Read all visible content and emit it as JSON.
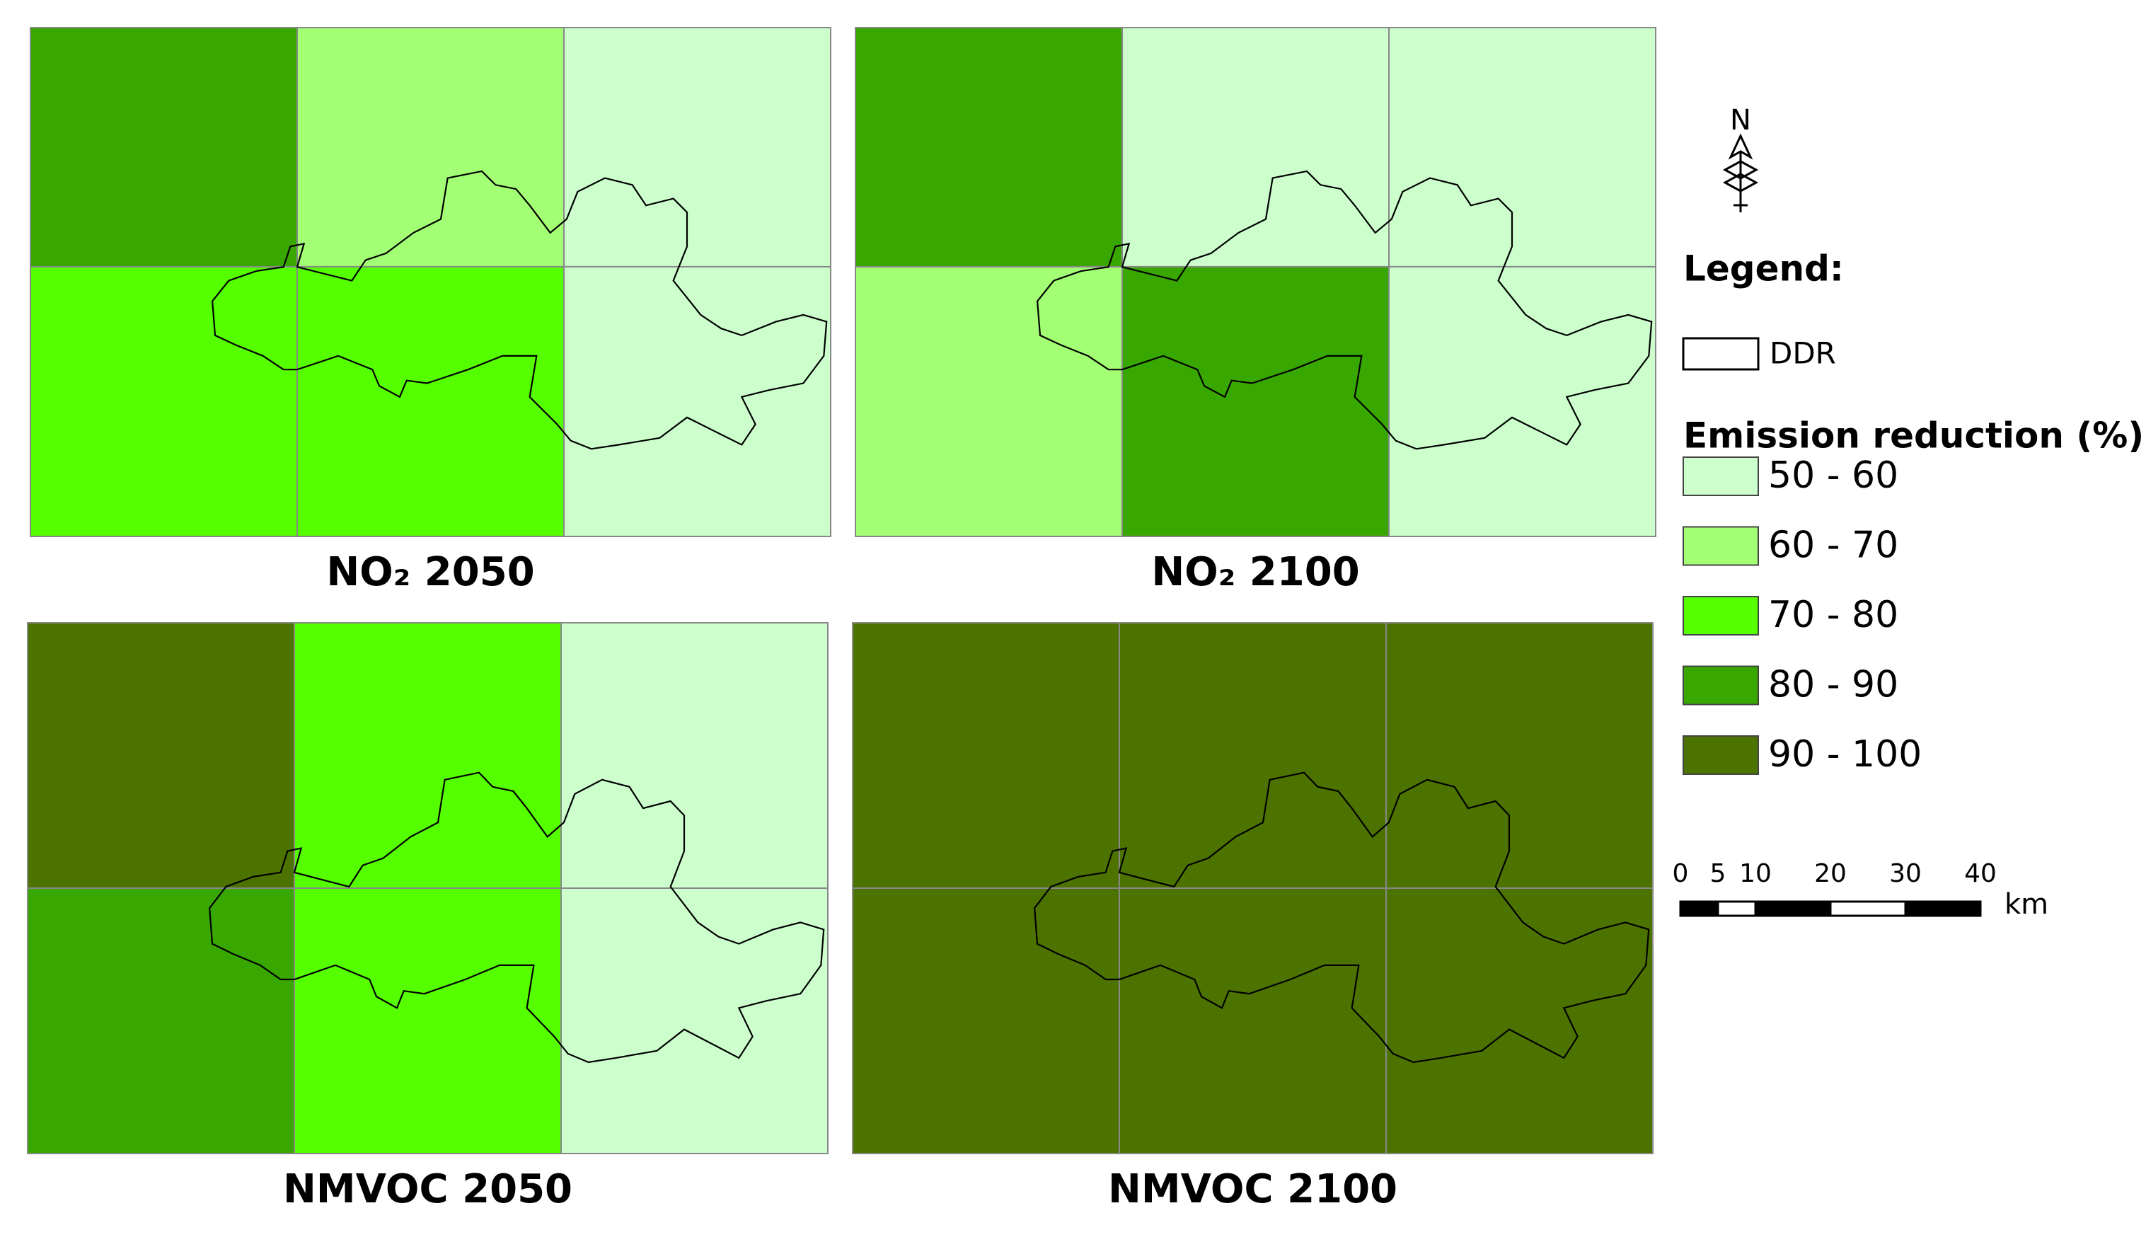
{
  "panels": [
    {
      "title": "NO₂ 2050",
      "cells": [
        [
          3,
          1,
          0
        ],
        [
          2,
          2,
          0
        ]
      ]
    },
    {
      "title": "NO₂ 2100",
      "cells": [
        [
          3,
          0,
          0
        ],
        [
          1,
          3,
          0
        ]
      ]
    },
    {
      "title": "NMVOC 2050",
      "cells": [
        [
          4,
          2,
          0
        ],
        [
          3,
          2,
          0
        ]
      ]
    },
    {
      "title": "NMVOC 2100",
      "cells": [
        [
          4,
          4,
          4
        ],
        [
          4,
          4,
          4
        ]
      ]
    }
  ],
  "north": "N",
  "legend": {
    "title": "Legend:",
    "boundary": "DDR",
    "heading": "Emission reduction (%)",
    "classes": [
      {
        "label": "50 - 60",
        "color": "#ccffcc"
      },
      {
        "label": "60 - 70",
        "color": "#a3ff73"
      },
      {
        "label": "70 - 80",
        "color": "#55ff00"
      },
      {
        "label": "80 - 90",
        "color": "#38a800"
      },
      {
        "label": "90 - 100",
        "color": "#4c7300"
      }
    ]
  },
  "scale_bar": {
    "ticks": [
      0,
      5,
      10,
      20,
      30,
      40
    ],
    "unit": "km"
  }
}
